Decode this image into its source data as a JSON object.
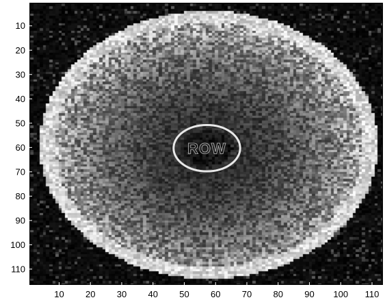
{
  "chart_data": {
    "type": "heatmap",
    "title": "",
    "xlabel": "",
    "ylabel": "",
    "colormap": "gray",
    "background_color": "#000000",
    "xlim": [
      0.5,
      113.5
    ],
    "ylim": [
      116.5,
      0.5
    ],
    "x_ticks": [
      10,
      20,
      30,
      40,
      50,
      60,
      70,
      80,
      90,
      100,
      110
    ],
    "y_ticks": [
      10,
      20,
      30,
      40,
      50,
      60,
      70,
      80,
      90,
      100,
      110
    ],
    "y_axis_direction": "reverse",
    "features": {
      "outer_ellipse": {
        "center": [
          57.5,
          58.5
        ],
        "semi_axis_x": 53,
        "semi_axis_y": 54
      },
      "inner_circle": {
        "center": [
          57,
          60
        ],
        "semi_axis_x": 9.5,
        "semi_axis_y": 8.5
      },
      "roi_label": "ROW"
    }
  }
}
